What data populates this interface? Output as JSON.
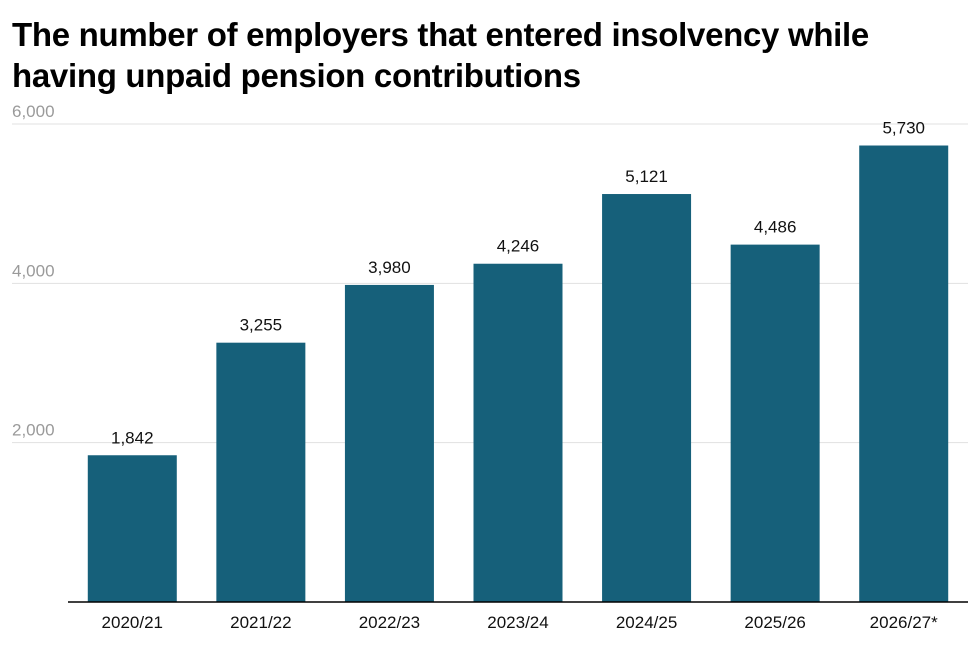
{
  "chart_data": {
    "type": "bar",
    "title": "The number of employers that entered insolvency while having unpaid pension contributions",
    "categories": [
      "2020/21",
      "2021/22",
      "2022/23",
      "2023/24",
      "2024/25",
      "2025/26",
      "2026/27*"
    ],
    "values": [
      1842,
      3255,
      3980,
      4246,
      5121,
      4486,
      5730
    ],
    "value_labels": [
      "1,842",
      "3,255",
      "3,980",
      "4,246",
      "5,121",
      "4,486",
      "5,730"
    ],
    "yticks": [
      2000,
      4000,
      6000
    ],
    "ytick_labels": [
      "2,000",
      "4,000",
      "6,000"
    ],
    "ylim": [
      0,
      6000
    ],
    "xlabel": "",
    "ylabel": "",
    "grid": true,
    "bar_color": "#16607a",
    "gridline_color": "#e1e1e1",
    "axis_color": "#000000"
  }
}
